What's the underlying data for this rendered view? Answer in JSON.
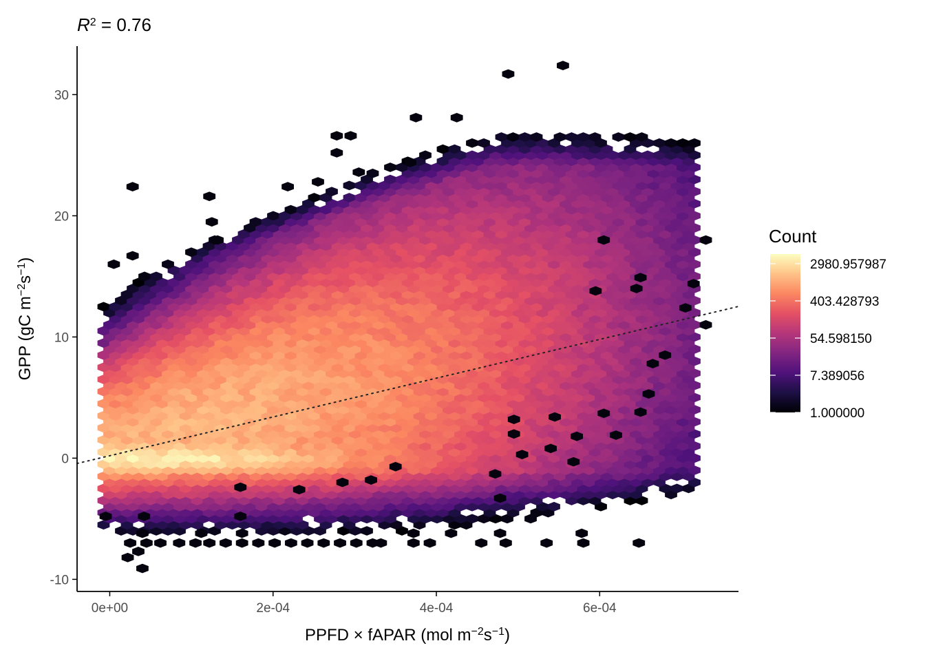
{
  "chart_data": {
    "type": "heatmap",
    "subtype": "hexbin",
    "title_parts": {
      "main": "R",
      "sup": "2",
      "rest": " = 0.76"
    },
    "x_label": {
      "a": "PPFD × fAPAR (mol m",
      "sup1": "−2",
      "b": "s",
      "sup2": "−1",
      "c": ")"
    },
    "y_label": {
      "a": "GPP (gC m",
      "sup1": "−2",
      "b": "s",
      "sup2": "−1",
      "c": ")"
    },
    "x_lim": [
      -4e-05,
      0.00077
    ],
    "y_lim": [
      -11,
      34
    ],
    "x_ticks": [
      0,
      0.0002,
      0.0004,
      0.0006
    ],
    "x_tick_labels": [
      "0e+00",
      "2e-04",
      "4e-04",
      "6e-04"
    ],
    "y_ticks": [
      -10,
      0,
      10,
      20,
      30
    ],
    "y_tick_labels": [
      "-10",
      "0",
      "10",
      "20",
      "30"
    ],
    "legend": {
      "title": "Count",
      "scale": "log",
      "min": 1,
      "max": 5000,
      "breaks": [
        1.0,
        7.389056,
        54.59815,
        403.428793,
        2980.957987
      ],
      "labels": [
        "1.000000",
        "7.389056",
        "54.598150",
        "403.428793",
        "2980.957987"
      ],
      "placement": "right",
      "palette": [
        "#000004",
        "#1c1044",
        "#4f127b",
        "#812581",
        "#b5367a",
        "#e55064",
        "#fb8761",
        "#fec287",
        "#fcfdbf"
      ]
    },
    "fit_line": {
      "style": "dotted",
      "color": "#222222",
      "intercept": 0.2,
      "slope": 16000
    },
    "density_model_note": "approximate 2D binned counts",
    "outlier_points": [
      {
        "x": 0.000488,
        "y": 31.7
      },
      {
        "x": 0.000555,
        "y": 32.4
      },
      {
        "x": 0.000375,
        "y": 28.1
      },
      {
        "x": 0.000425,
        "y": 28.1
      },
      {
        "x": 0.000278,
        "y": 26.6
      },
      {
        "x": 0.000295,
        "y": 26.6
      },
      {
        "x": 0.000278,
        "y": 25.2
      },
      {
        "x": 0.000368,
        "y": 24.4
      },
      {
        "x": 0.000305,
        "y": 23.6
      },
      {
        "x": 0.000255,
        "y": 22.8
      },
      {
        "x": 2.8e-05,
        "y": 22.4
      },
      {
        "x": 0.000218,
        "y": 22.4
      },
      {
        "x": 0.000122,
        "y": 21.6
      },
      {
        "x": 0.000125,
        "y": 19.5
      },
      {
        "x": 0.000132,
        "y": 18.0
      },
      {
        "x": 5e-06,
        "y": 16.0
      },
      {
        "x": 2.8e-05,
        "y": 16.7
      },
      {
        "x": 0.000645,
        "y": 14.0
      },
      {
        "x": 0.00065,
        "y": 14.9
      },
      {
        "x": 0.000715,
        "y": 14.4
      },
      {
        "x": 0.00073,
        "y": 18.0
      },
      {
        "x": 0.00073,
        "y": 11.0
      },
      {
        "x": 0.000705,
        "y": 12.4
      },
      {
        "x": 0.00068,
        "y": 8.5
      },
      {
        "x": 0.000665,
        "y": 7.8
      },
      {
        "x": 0.00066,
        "y": 5.3
      },
      {
        "x": 0.00065,
        "y": 3.8
      },
      {
        "x": 0.000605,
        "y": 18.0
      },
      {
        "x": 0.000568,
        "y": -0.3
      },
      {
        "x": 0.000478,
        "y": -3.3
      },
      {
        "x": 0.000605,
        "y": 3.7
      },
      {
        "x": 0.000572,
        "y": 1.8
      },
      {
        "x": 0.000545,
        "y": 3.4
      },
      {
        "x": 0.000495,
        "y": 3.2
      },
      {
        "x": 0.00054,
        "y": 0.8
      },
      {
        "x": 0.000495,
        "y": 2.0
      },
      {
        "x": 0.000505,
        "y": 0.3
      },
      {
        "x": 0.000472,
        "y": -1.3
      },
      {
        "x": 0.00062,
        "y": 1.9
      },
      {
        "x": 0.000595,
        "y": 13.8
      },
      {
        "x": 0.00035,
        "y": -0.7
      },
      {
        "x": 0.00032,
        "y": -1.8
      },
      {
        "x": 0.000285,
        "y": -2.0
      },
      {
        "x": 0.000232,
        "y": -2.6
      },
      {
        "x": 0.00016,
        "y": -2.4
      },
      {
        "x": 4.2e-05,
        "y": -4.8
      },
      {
        "x": -5e-06,
        "y": -4.8
      },
      {
        "x": 0.00016,
        "y": -4.8
      },
      {
        "x": 2.5e-05,
        "y": -7.0
      },
      {
        "x": 4.5e-05,
        "y": -7.0
      },
      {
        "x": 6.2e-05,
        "y": -7.0
      },
      {
        "x": 8.5e-05,
        "y": -7.0
      },
      {
        "x": 0.000105,
        "y": -7.0
      },
      {
        "x": 0.000122,
        "y": -7.0
      },
      {
        "x": 0.000142,
        "y": -7.0
      },
      {
        "x": 0.000162,
        "y": -7.0
      },
      {
        "x": 0.000182,
        "y": -7.0
      },
      {
        "x": 0.000202,
        "y": -7.0
      },
      {
        "x": 0.000222,
        "y": -7.0
      },
      {
        "x": 0.000242,
        "y": -7.0
      },
      {
        "x": 0.000262,
        "y": -7.0
      },
      {
        "x": 0.000282,
        "y": -7.0
      },
      {
        "x": 0.000302,
        "y": -7.0
      },
      {
        "x": 0.000322,
        "y": -7.0
      },
      {
        "x": 0.000332,
        "y": -7.0
      },
      {
        "x": 0.000372,
        "y": -7.0
      },
      {
        "x": 0.000392,
        "y": -7.0
      },
      {
        "x": 0.000455,
        "y": -7.0
      },
      {
        "x": 0.000485,
        "y": -7.0
      },
      {
        "x": 0.000535,
        "y": -7.0
      },
      {
        "x": 0.00058,
        "y": -7.0
      },
      {
        "x": 0.000648,
        "y": -7.0
      },
      {
        "x": 0.000372,
        "y": -6.2
      },
      {
        "x": 0.000418,
        "y": -6.2
      },
      {
        "x": 0.000478,
        "y": -6.2
      },
      {
        "x": 0.000578,
        "y": -6.2
      },
      {
        "x": 0.000112,
        "y": -6.2
      },
      {
        "x": 0.000162,
        "y": -6.2
      },
      {
        "x": 4e-05,
        "y": -6.2
      },
      {
        "x": 2.2e-05,
        "y": -8.2
      },
      {
        "x": 3.5e-05,
        "y": -7.7
      },
      {
        "x": 4e-05,
        "y": -9.1
      }
    ]
  }
}
